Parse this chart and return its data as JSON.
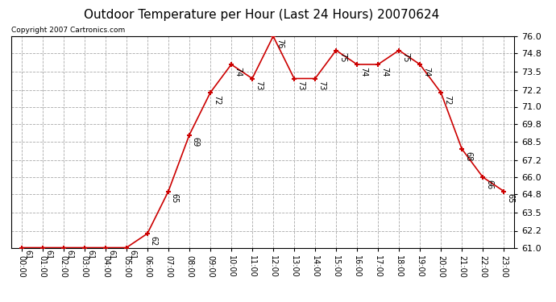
{
  "title": "Outdoor Temperature per Hour (Last 24 Hours) 20070624",
  "copyright": "Copyright 2007 Cartronics.com",
  "hours": [
    "00:00",
    "01:00",
    "02:00",
    "03:00",
    "04:00",
    "05:00",
    "06:00",
    "07:00",
    "08:00",
    "09:00",
    "10:00",
    "11:00",
    "12:00",
    "13:00",
    "14:00",
    "15:00",
    "16:00",
    "17:00",
    "18:00",
    "19:00",
    "20:00",
    "21:00",
    "22:00",
    "23:00"
  ],
  "temps": [
    61,
    61,
    61,
    61,
    61,
    61,
    62,
    65,
    69,
    72,
    74,
    73,
    76,
    73,
    73,
    75,
    74,
    74,
    75,
    74,
    72,
    68,
    66,
    65
  ],
  "ylim_min": 61.0,
  "ylim_max": 76.0,
  "line_color": "#cc0000",
  "marker_color": "#cc0000",
  "bg_color": "#ffffff",
  "grid_color": "#aaaaaa",
  "label_fontsize": 7,
  "title_fontsize": 11,
  "copyright_fontsize": 6.5,
  "tick_fontsize": 8,
  "yticks": [
    61.0,
    62.2,
    63.5,
    64.8,
    66.0,
    67.2,
    68.5,
    69.8,
    71.0,
    72.2,
    73.5,
    74.8,
    76.0
  ]
}
